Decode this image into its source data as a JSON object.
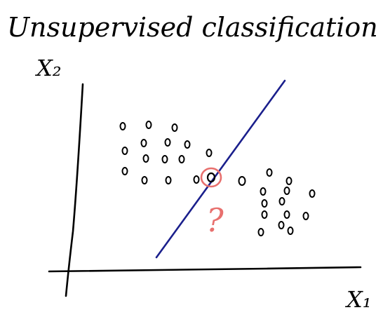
{
  "title": "Unsupervised classification",
  "axis_x_label": "X₁",
  "axis_y_label": "X₂",
  "question_mark": "?",
  "colors": {
    "ink": "#000000",
    "boundary": "#1a1f8c",
    "highlight": "#e8706e"
  },
  "clusters": {
    "left_count": 18,
    "right_count": 16,
    "ambiguous_point": true
  }
}
